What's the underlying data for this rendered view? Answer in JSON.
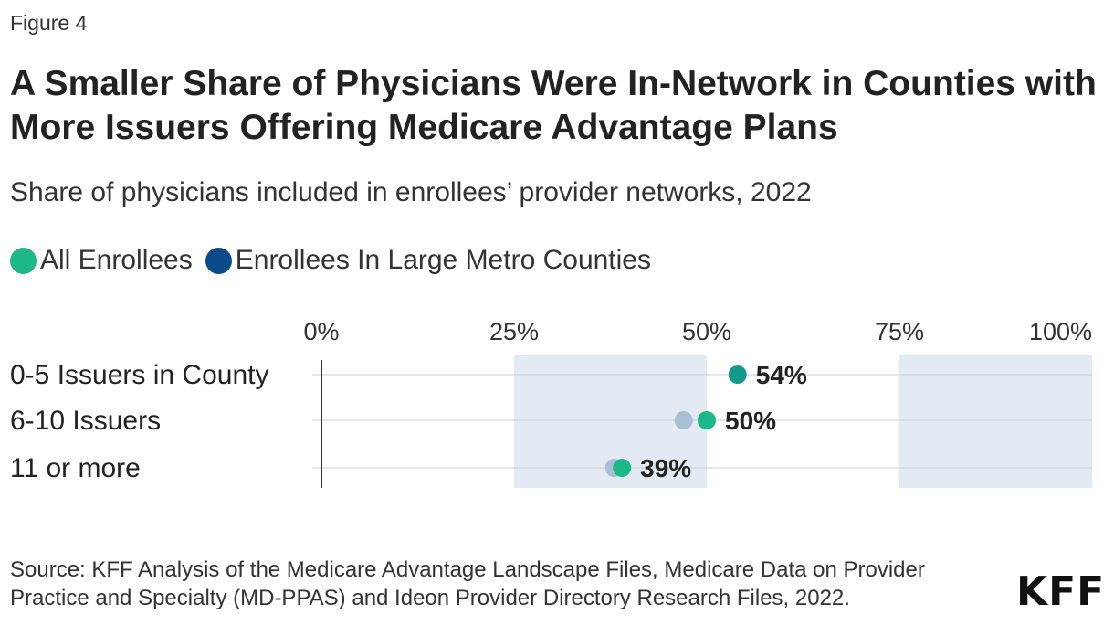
{
  "figure_label": "Figure 4",
  "title": "A Smaller Share of Physicians Were In-Network in Counties with More Issuers Offering Medicare Advantage Plans",
  "subtitle": "Share of physicians included in enrollees’ provider networks, 2022",
  "legend": [
    {
      "label": "All Enrollees",
      "color": "#1db88a"
    },
    {
      "label": "Enrollees In Large Metro Counties",
      "color": "#0b4a8b"
    }
  ],
  "colors": {
    "all_enrollees": "#1db88a",
    "large_metro": "#a9bfd6",
    "overlap": "#12998a",
    "band": "#e3eaf3",
    "gridline": "#cccccc",
    "axis": "#333333"
  },
  "chart_data": {
    "type": "scatter",
    "title": "A Smaller Share of Physicians Were In-Network in Counties with More Issuers Offering Medicare Advantage Plans",
    "xlim": [
      0,
      100
    ],
    "x_ticks": [
      "0%",
      "25%",
      "50%",
      "75%",
      "100%"
    ],
    "x_tick_values": [
      0,
      25,
      50,
      75,
      100
    ],
    "shaded_bands": [
      [
        25,
        50
      ],
      [
        75,
        100
      ]
    ],
    "categories": [
      "0-5 Issuers in County",
      "6-10 Issuers",
      "11 or more"
    ],
    "series": [
      {
        "name": "All Enrollees",
        "values": [
          54,
          50,
          39
        ]
      },
      {
        "name": "Enrollees In Large Metro Counties",
        "values": [
          54,
          47,
          38
        ]
      }
    ],
    "data_labels": [
      "54%",
      "50%",
      "39%"
    ]
  },
  "source": "Source: KFF Analysis of the Medicare Advantage Landscape Files, Medicare Data on Provider Practice and Specialty (MD-PPAS) and Ideon Provider Directory Research Files, 2022.",
  "logo": "KFF"
}
